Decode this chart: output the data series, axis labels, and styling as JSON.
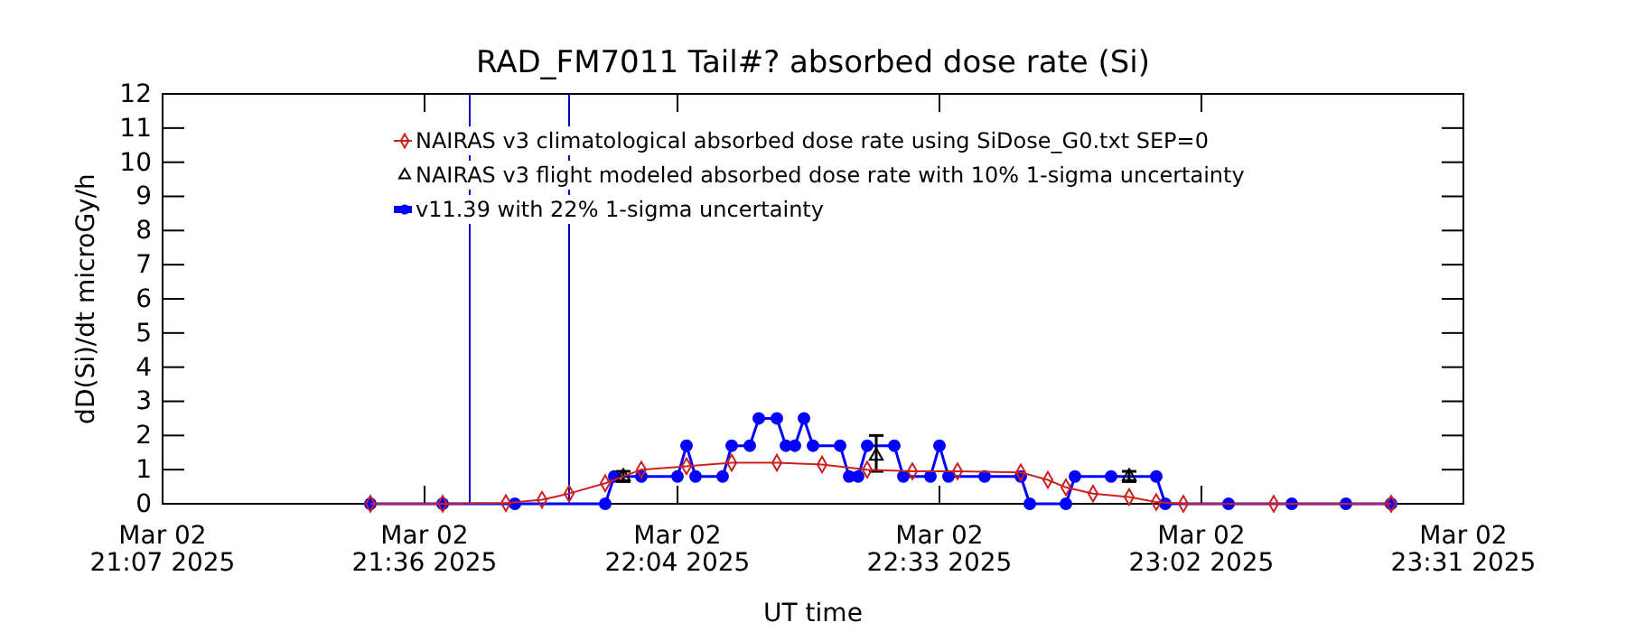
{
  "chart_data": {
    "type": "line",
    "title": "RAD_FM7011  Tail#? absorbed dose rate (Si)",
    "xlabel": "UT time",
    "ylabel": "dD(Si)/dt microGy/h",
    "xlim": [
      "2025-03-02T21:07",
      "2025-03-02T23:31"
    ],
    "xticks": [
      {
        "value": "2025-03-02T21:07",
        "label": "Mar 02\n21:07 2025"
      },
      {
        "value": "2025-03-02T21:36",
        "label": "Mar 02\n21:36 2025"
      },
      {
        "value": "2025-03-02T22:04",
        "label": "Mar 02\n22:04 2025"
      },
      {
        "value": "2025-03-02T22:33",
        "label": "Mar 02\n22:33 2025"
      },
      {
        "value": "2025-03-02T23:02",
        "label": "Mar 02\n23:02 2025"
      },
      {
        "value": "2025-03-02T23:31",
        "label": "Mar 02\n23:31 2025"
      }
    ],
    "ylim": [
      0,
      12
    ],
    "yticks": [
      0,
      1,
      2,
      3,
      4,
      5,
      6,
      7,
      8,
      9,
      10,
      11,
      12
    ],
    "grid": false,
    "legend": "top left",
    "ref_lines": [
      {
        "axis": "x",
        "value": "2025-03-02T21:41",
        "color": "#0000cc"
      },
      {
        "axis": "x",
        "value": "2025-03-02T21:52",
        "color": "#0000cc"
      }
    ],
    "series": [
      {
        "name": "NAIRAS v3 climatological absorbed dose rate using SiDose_G0.txt SEP=0",
        "marker": "diamond",
        "color": "#cc2020",
        "x": [
          "2025-03-02T21:30",
          "2025-03-02T21:38",
          "2025-03-02T21:45",
          "2025-03-02T21:49",
          "2025-03-02T21:52",
          "2025-03-02T21:56",
          "2025-03-02T22:00",
          "2025-03-02T22:05",
          "2025-03-02T22:10",
          "2025-03-02T22:15",
          "2025-03-02T22:20",
          "2025-03-02T22:25",
          "2025-03-02T22:30",
          "2025-03-02T22:35",
          "2025-03-02T22:42",
          "2025-03-02T22:45",
          "2025-03-02T22:47",
          "2025-03-02T22:50",
          "2025-03-02T22:54",
          "2025-03-02T22:57",
          "2025-03-02T23:00",
          "2025-03-02T23:10",
          "2025-03-02T23:23"
        ],
        "values": [
          0,
          0,
          0.02,
          0.12,
          0.3,
          0.6,
          1.0,
          1.1,
          1.2,
          1.2,
          1.15,
          1.0,
          0.95,
          0.95,
          0.92,
          0.7,
          0.48,
          0.3,
          0.2,
          0.05,
          0,
          0,
          0
        ]
      },
      {
        "name": "NAIRAS v3 flight modeled absorbed dose rate with 10% 1-sigma uncertainty",
        "type": "scatter",
        "marker": "triangle",
        "color": "#000000",
        "x": [
          "2025-03-02T21:58",
          "2025-03-02T22:26",
          "2025-03-02T22:54"
        ],
        "values": [
          0.8,
          1.4,
          0.8
        ],
        "errors": [
          0.15,
          [
            0.95,
            2.0
          ],
          0.15
        ]
      },
      {
        "name": "v11.39 with 22% 1-sigma uncertainty",
        "marker": "circle",
        "color": "#0000ff",
        "x": [
          "2025-03-02T21:30",
          "2025-03-02T21:38",
          "2025-03-02T21:46",
          "2025-03-02T21:56",
          "2025-03-02T21:57",
          "2025-03-02T22:00",
          "2025-03-02T22:04",
          "2025-03-02T22:05",
          "2025-03-02T22:06",
          "2025-03-02T22:09",
          "2025-03-02T22:10",
          "2025-03-02T22:12",
          "2025-03-02T22:13",
          "2025-03-02T22:15",
          "2025-03-02T22:16",
          "2025-03-02T22:17",
          "2025-03-02T22:18",
          "2025-03-02T22:19",
          "2025-03-02T22:22",
          "2025-03-02T22:23",
          "2025-03-02T22:24",
          "2025-03-02T22:25",
          "2025-03-02T22:28",
          "2025-03-02T22:29",
          "2025-03-02T22:32",
          "2025-03-02T22:33",
          "2025-03-02T22:34",
          "2025-03-02T22:38",
          "2025-03-02T22:42",
          "2025-03-02T22:43",
          "2025-03-02T22:47",
          "2025-03-02T22:48",
          "2025-03-02T22:52",
          "2025-03-02T22:57",
          "2025-03-02T22:58",
          "2025-03-02T23:05",
          "2025-03-02T23:12",
          "2025-03-02T23:18",
          "2025-03-02T23:23"
        ],
        "values": [
          0,
          0,
          0,
          0,
          0.8,
          0.8,
          0.8,
          1.7,
          0.8,
          0.8,
          1.7,
          1.7,
          2.5,
          2.5,
          1.7,
          1.7,
          2.5,
          1.7,
          1.7,
          0.8,
          0.8,
          1.7,
          1.7,
          0.8,
          0.8,
          1.7,
          0.8,
          0.8,
          0.8,
          0,
          0,
          0.8,
          0.8,
          0.8,
          0,
          0,
          0,
          0,
          0
        ]
      }
    ]
  }
}
